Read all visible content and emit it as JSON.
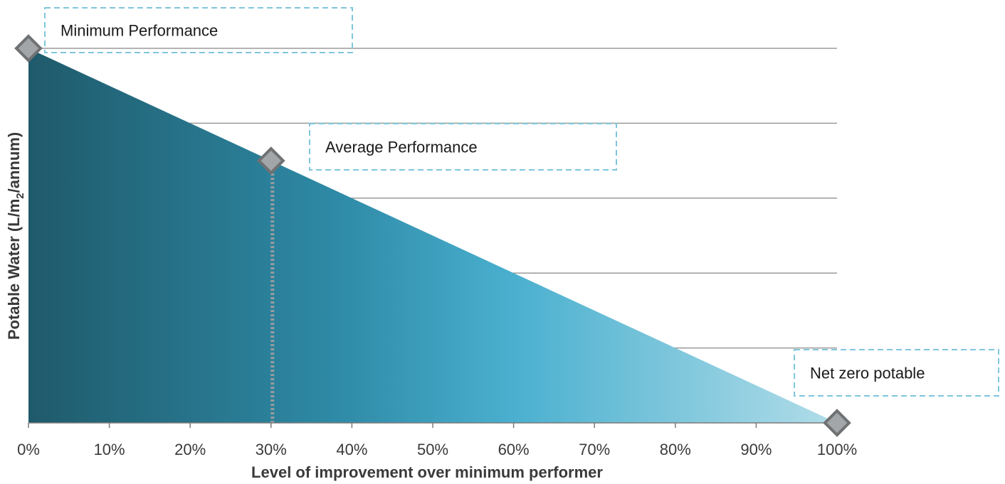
{
  "chart_data": {
    "type": "area",
    "xlabel": "Level of improvement over minimum performer",
    "ylabel": "Potable Water (L/m2/annum)",
    "x_ticks": [
      "0%",
      "10%",
      "20%",
      "30%",
      "40%",
      "50%",
      "60%",
      "70%",
      "80%",
      "90%",
      "100%"
    ],
    "xlim": [
      0,
      100
    ],
    "ylim": [
      0,
      100
    ],
    "x": [
      0,
      100
    ],
    "y": [
      100,
      0
    ],
    "gridlines_y": [
      20,
      40,
      60,
      80,
      100
    ],
    "points": [
      {
        "x": 0,
        "y": 100,
        "label": "Minimum Performance"
      },
      {
        "x": 30,
        "y": 70,
        "label": "Average Performance"
      },
      {
        "x": 100,
        "y": 0,
        "label": "Net zero potable"
      }
    ],
    "gradient_colors": [
      "#1f5a6b",
      "#2e8aa6",
      "#4ab0cf",
      "#b2dde9"
    ],
    "marker_color": "#a3a6a8",
    "marker_stroke": "#6f7173",
    "callout_border_color": "#7fc6dc",
    "grid": true
  }
}
